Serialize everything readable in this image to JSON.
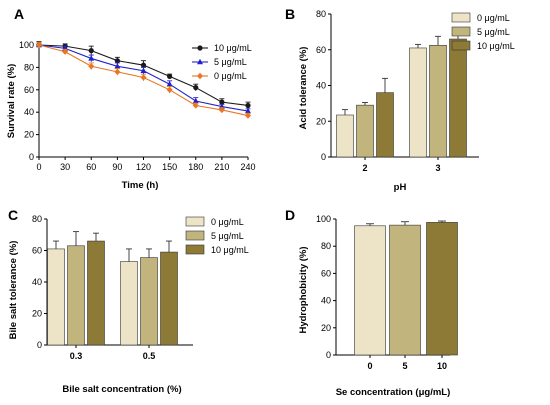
{
  "colors": {
    "s10": "#1a1a1a",
    "s5": "#2222cc",
    "s0": "#e87722",
    "bar0": "#ede4c7",
    "bar5": "#c2b47d",
    "bar10": "#8e7a37"
  },
  "chart_data": [
    {
      "panel": "A",
      "type": "line",
      "xlabel": "Time (h)",
      "ylabel": "Survival rate (%)",
      "x": [
        0,
        30,
        60,
        90,
        120,
        150,
        180,
        210,
        240
      ],
      "xticks": [
        "0",
        "30",
        "60",
        "90",
        "120",
        "150",
        "180",
        "210",
        "240"
      ],
      "yticks": [
        "0",
        "20",
        "40",
        "60",
        "80",
        "100"
      ],
      "xlim": [
        0,
        240
      ],
      "ylim": [
        0,
        100
      ],
      "legend_position": "right",
      "series": [
        {
          "name": "10 μg/mL",
          "marker": "circle",
          "values": [
            100,
            99,
            95,
            86,
            82,
            72,
            62,
            49,
            46
          ],
          "errors": [
            3,
            2,
            4,
            3,
            4,
            2,
            3,
            3,
            3
          ]
        },
        {
          "name": "5 μg/mL",
          "marker": "triangle",
          "values": [
            100,
            97,
            88,
            81,
            77,
            65,
            50,
            45,
            41
          ],
          "errors": [
            2,
            2,
            3,
            3,
            3,
            3,
            3,
            2,
            2
          ]
        },
        {
          "name": "0 μg/mL",
          "marker": "diamond",
          "values": [
            100,
            94,
            81,
            76,
            71,
            60,
            46,
            42,
            37
          ],
          "errors": [
            2,
            2,
            3,
            3,
            3,
            3,
            2,
            2,
            2
          ]
        }
      ]
    },
    {
      "panel": "B",
      "type": "bar",
      "xlabel": "pH",
      "ylabel": "Acid tolerance (%)",
      "categories": [
        "2",
        "3"
      ],
      "yticks": [
        "0",
        "20",
        "40",
        "60",
        "80"
      ],
      "ylim": [
        0,
        80
      ],
      "legend_position": "top-right",
      "series": [
        {
          "name": "0 μg/mL",
          "values": [
            23.5,
            61
          ],
          "errors": [
            3,
            2
          ]
        },
        {
          "name": "5 μg/mL",
          "values": [
            29,
            62.5
          ],
          "errors": [
            1.5,
            5
          ]
        },
        {
          "name": "10 μg/mL",
          "values": [
            36,
            66
          ],
          "errors": [
            8,
            5
          ]
        }
      ]
    },
    {
      "panel": "C",
      "type": "bar",
      "xlabel": "Bile salt concentration (%)",
      "ylabel": "Bile salt tolerance (%)",
      "categories": [
        "0.3",
        "0.5"
      ],
      "yticks": [
        "0",
        "20",
        "40",
        "60",
        "80"
      ],
      "ylim": [
        0,
        80
      ],
      "legend_position": "top-right",
      "series": [
        {
          "name": "0 μg/mL",
          "values": [
            61,
            53
          ],
          "errors": [
            5,
            8
          ]
        },
        {
          "name": "5 μg/mL",
          "values": [
            63,
            55.5
          ],
          "errors": [
            9,
            5.5
          ]
        },
        {
          "name": "10 μg/mL",
          "values": [
            66,
            59
          ],
          "errors": [
            5,
            7
          ]
        }
      ]
    },
    {
      "panel": "D",
      "type": "bar",
      "xlabel": "Se concentration (μg/mL)",
      "ylabel": "Hydrophobicity (%)",
      "categories": [
        "0",
        "5",
        "10"
      ],
      "yticks": [
        "0",
        "20",
        "40",
        "60",
        "80",
        "100"
      ],
      "ylim": [
        0,
        100
      ],
      "values": [
        95,
        95.5,
        97.5
      ],
      "errors": [
        1.5,
        2.5,
        1
      ]
    }
  ]
}
